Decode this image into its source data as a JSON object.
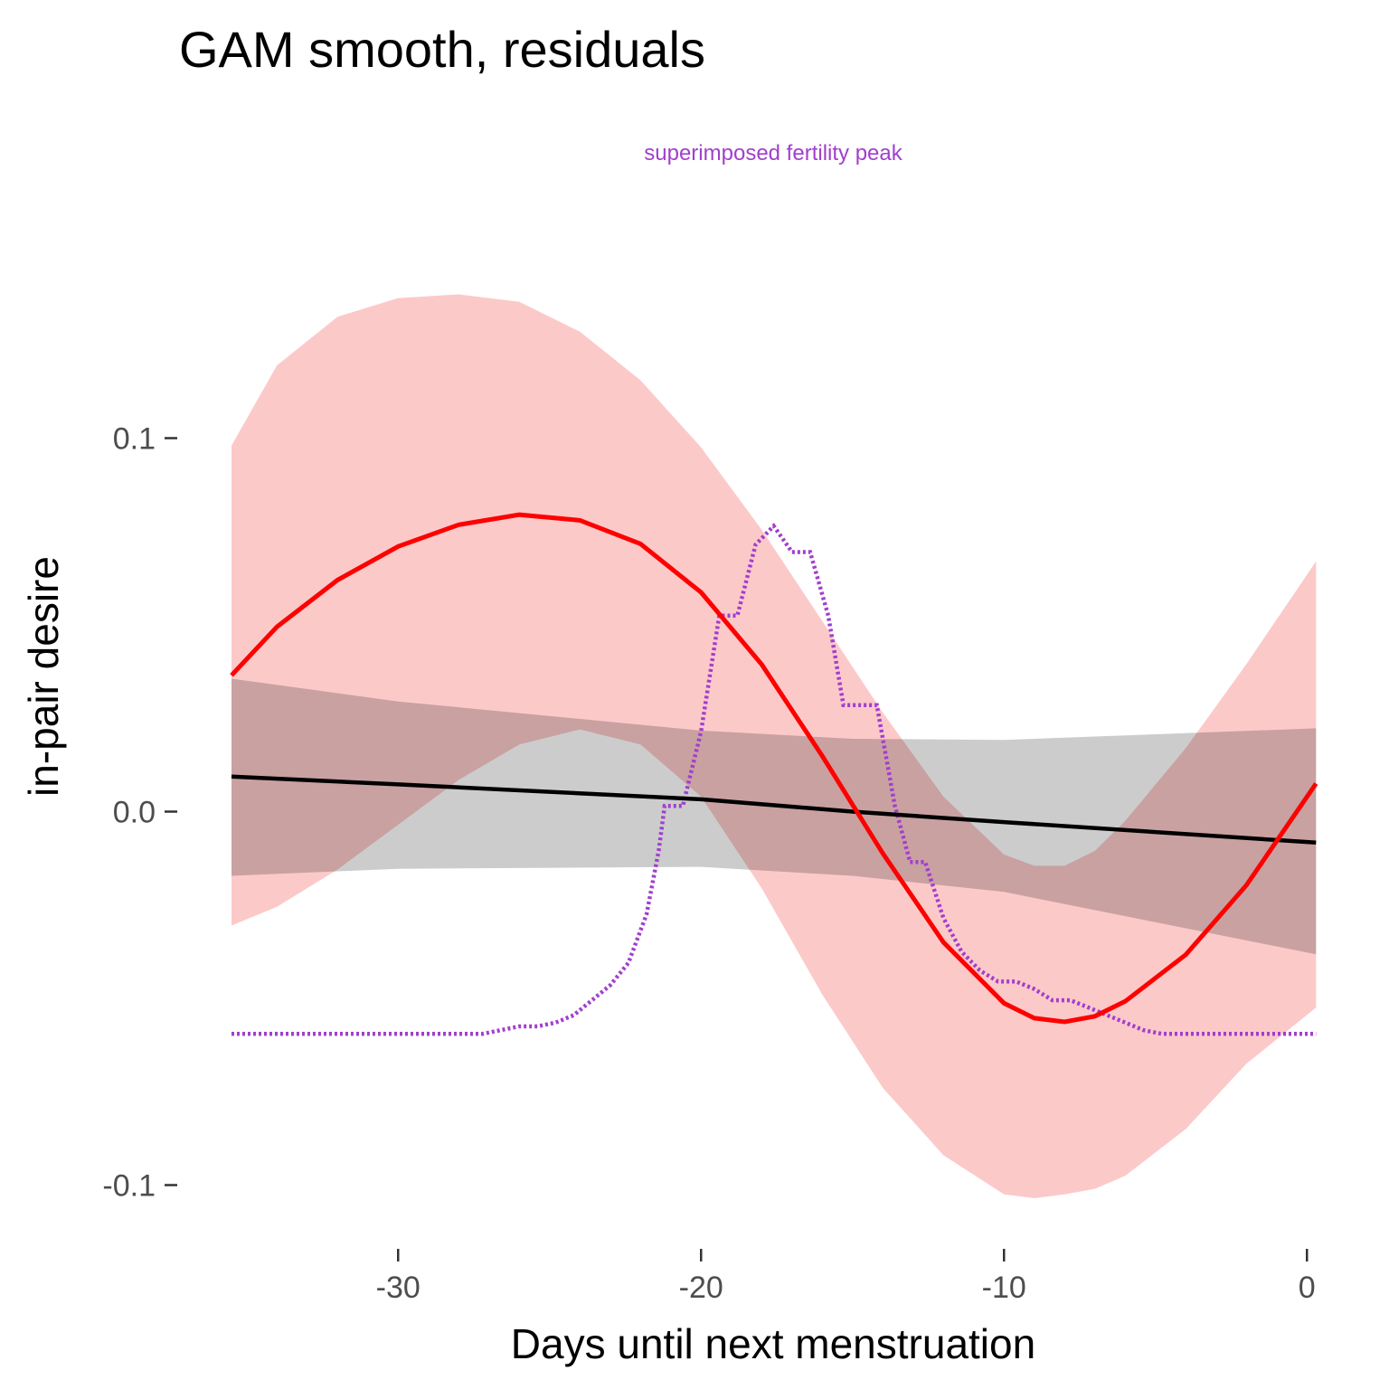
{
  "chart_data": {
    "type": "line",
    "title": "GAM smooth, residuals",
    "subtitle": "superimposed fertility peak",
    "xlabel": "Days until next menstruation",
    "ylabel": "in-pair desire",
    "xlim": [
      -35.5,
      0.3
    ],
    "ylim": [
      -0.107,
      0.138
    ],
    "x_ticks": [
      -30,
      -20,
      -10,
      0
    ],
    "x_tick_labels": [
      "-30",
      "-20",
      "-10",
      "0"
    ],
    "y_ticks": [
      0.1,
      0.0,
      -0.1
    ],
    "y_tick_labels": [
      "0.1",
      "0.0",
      "-0.1"
    ],
    "grid": false,
    "colors": {
      "gam": "#ff0000",
      "gam_band": "#fcc9c9",
      "linear": "#000000",
      "linear_band": "#cccccc",
      "overlap": "#caa5a5",
      "fertility": "#a13fcc"
    },
    "series": [
      {
        "name": "GAM smooth",
        "style": "solid",
        "x": [
          -35.5,
          -34,
          -32,
          -30,
          -28,
          -26,
          -24,
          -22,
          -20,
          -18,
          -16,
          -14,
          -12,
          -10,
          -9,
          -8,
          -7,
          -6,
          -4,
          -2,
          0.3
        ],
        "y": [
          0.0365,
          0.0495,
          0.062,
          0.071,
          0.0768,
          0.0795,
          0.078,
          0.0717,
          0.0587,
          0.0394,
          0.0149,
          -0.0112,
          -0.035,
          -0.0513,
          -0.0553,
          -0.0563,
          -0.0548,
          -0.0508,
          -0.0383,
          -0.0197,
          0.0075
        ],
        "lower": [
          -0.0305,
          -0.0255,
          -0.0155,
          -0.0035,
          0.0085,
          0.018,
          0.022,
          0.018,
          0.004,
          -0.0205,
          -0.049,
          -0.074,
          -0.092,
          -0.1025,
          -0.1035,
          -0.1025,
          -0.101,
          -0.0975,
          -0.085,
          -0.0675,
          -0.0525
        ],
        "upper": [
          0.098,
          0.1195,
          0.1325,
          0.1375,
          0.1385,
          0.1365,
          0.1285,
          0.1155,
          0.0975,
          0.0755,
          0.051,
          0.0265,
          0.004,
          -0.0115,
          -0.0145,
          -0.0145,
          -0.0105,
          -0.0025,
          0.017,
          0.0395,
          0.067
        ]
      },
      {
        "name": "linear fit",
        "style": "solid",
        "x": [
          -35.5,
          -30,
          -20,
          -15,
          -10,
          0.3
        ],
        "y": [
          0.0094,
          0.0073,
          0.0033,
          0.0,
          -0.0028,
          -0.0083
        ],
        "lower": [
          -0.0172,
          -0.0153,
          -0.0148,
          -0.0172,
          -0.0215,
          -0.0382
        ],
        "upper": [
          0.0356,
          0.0295,
          0.0217,
          0.0195,
          0.0192,
          0.0223
        ]
      },
      {
        "name": "superimposed fertility peak",
        "style": "dotted",
        "x": [
          -35.5,
          -29.5,
          -27.2,
          -26.6,
          -26.0,
          -25.4,
          -24.8,
          -24.2,
          -23.6,
          -23.0,
          -22.4,
          -21.8,
          -21.4,
          -21.2,
          -20.6,
          -20.0,
          -19.4,
          -18.8,
          -18.2,
          -17.6,
          -17.0,
          -16.4,
          -15.8,
          -15.3,
          -14.8,
          -14.2,
          -13.6,
          -13.1,
          -12.6,
          -12.0,
          -11.4,
          -10.8,
          -10.2,
          -9.6,
          -9.0,
          -8.4,
          -7.8,
          -7.2,
          -6.6,
          -6.0,
          -5.4,
          -4.8,
          -4.2,
          -3.6,
          -3.0,
          -2.4,
          -1.8,
          -1.2,
          -0.6,
          0.3
        ],
        "y": [
          -0.0595,
          -0.0595,
          -0.0595,
          -0.0585,
          -0.0575,
          -0.0575,
          -0.0565,
          -0.0545,
          -0.0505,
          -0.0465,
          -0.0405,
          -0.0275,
          -0.0105,
          0.0015,
          0.0015,
          0.0215,
          0.0525,
          0.0525,
          0.0715,
          0.0765,
          0.0695,
          0.0695,
          0.0525,
          0.0285,
          0.0285,
          0.0285,
          0.0015,
          -0.0135,
          -0.0135,
          -0.0285,
          -0.0375,
          -0.0425,
          -0.0455,
          -0.0455,
          -0.0475,
          -0.0505,
          -0.0505,
          -0.0525,
          -0.0545,
          -0.0565,
          -0.0585,
          -0.0595,
          -0.0595,
          -0.0595,
          -0.0595,
          -0.0595,
          -0.0595,
          -0.0595,
          -0.0595,
          -0.0595
        ]
      }
    ]
  }
}
